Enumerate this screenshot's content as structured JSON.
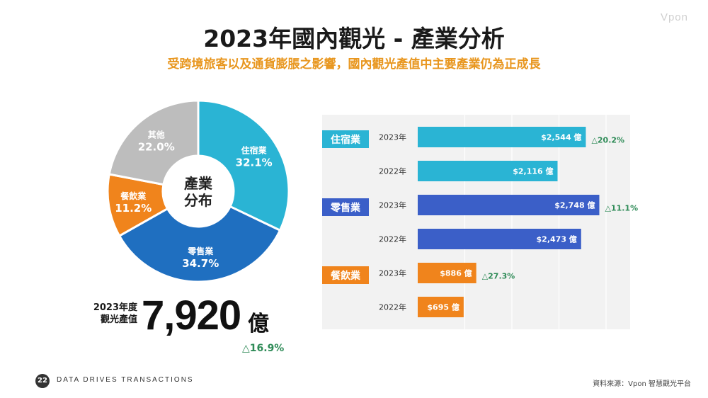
{
  "logo_text": "Vpon",
  "title": "2023年國內觀光 - 產業分析",
  "subtitle": "受跨境旅客以及通貨膨脹之影響，國內觀光產值中主要產業仍為正成長",
  "summary": {
    "label_line1": "2023年度",
    "label_line2": "觀光產值",
    "value": "7,920",
    "unit": "億",
    "growth": "△16.9%"
  },
  "footer": {
    "page_number": "22",
    "tagline": "DATA DRIVES TRANSACTIONS",
    "source": "資料來源：Vpon 智慧觀光平台"
  },
  "chart_data": [
    {
      "type": "pie",
      "center_label": [
        "產業",
        "分布"
      ],
      "slices": [
        {
          "label": "住宿業",
          "value": 32.1,
          "value_label": "32.1%",
          "color": "#2ab4d4"
        },
        {
          "label": "零售業",
          "value": 34.7,
          "value_label": "34.7%",
          "color": "#1f6fc0"
        },
        {
          "label": "餐飲業",
          "value": 11.2,
          "value_label": "11.2%",
          "color": "#f0841c"
        },
        {
          "label": "其他",
          "value": 22.0,
          "value_label": "22.0%",
          "color": "#bdbdbd"
        }
      ]
    },
    {
      "type": "bar",
      "orientation": "horizontal",
      "xlim": [
        0,
        3000
      ],
      "groups": [
        {
          "category": "住宿業",
          "color": "#2ab4d4",
          "bars": [
            {
              "year": "2023年",
              "value": 2544,
              "value_label": "$2,544 億",
              "growth": "△20.2%"
            },
            {
              "year": "2022年",
              "value": 2116,
              "value_label": "$2,116 億",
              "growth": ""
            }
          ]
        },
        {
          "category": "零售業",
          "color": "#3b5fc8",
          "bars": [
            {
              "year": "2023年",
              "value": 2748,
              "value_label": "$2,748 億",
              "growth": "△11.1%"
            },
            {
              "year": "2022年",
              "value": 2473,
              "value_label": "$2,473 億",
              "growth": ""
            }
          ]
        },
        {
          "category": "餐飲業",
          "color": "#f0841c",
          "bars": [
            {
              "year": "2023年",
              "value": 886,
              "value_label": "$886 億",
              "growth": "△27.3%"
            },
            {
              "year": "2022年",
              "value": 695,
              "value_label": "$695 億",
              "growth": ""
            }
          ]
        }
      ]
    }
  ]
}
